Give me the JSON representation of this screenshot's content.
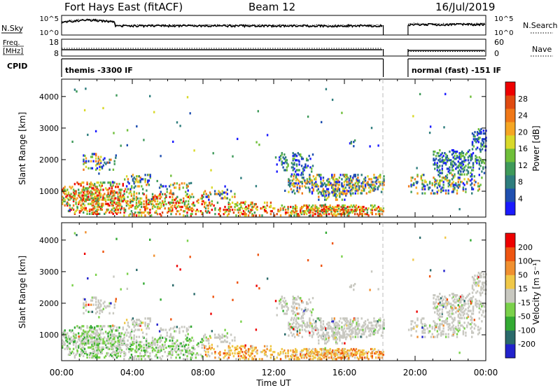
{
  "header": {
    "station": "Fort Hays East (fitACF)",
    "beam": "Beam 12",
    "date": "16/Jul/2019"
  },
  "status_panels": {
    "noise": {
      "left_label": "N.Sky",
      "right_label": "N.Search",
      "left_ticks": [
        "10^5",
        "10^0"
      ],
      "right_ticks": [
        "10^5",
        "10^0"
      ]
    },
    "frequency": {
      "left_label_top": "Freq.",
      "left_label_bottom": "[MHz]",
      "right_label": "Nave",
      "left_ticks": [
        "18",
        "8"
      ],
      "right_ticks": [
        "60",
        "0"
      ]
    },
    "cpid": {
      "label": "CPID",
      "segments": [
        {
          "text": "themis -3300 IF",
          "start_hour": 0,
          "end_hour": 18.2
        },
        {
          "text": "normal (fast) -151 IF",
          "start_hour": 19.6,
          "end_hour": 24
        }
      ]
    }
  },
  "chart_data": [
    {
      "type": "heatmap",
      "name": "power-panel",
      "ylabel": "Slant Range [km]",
      "y_ticks": [
        1000,
        2000,
        3000,
        4000
      ],
      "x_ticks": [
        "00:00",
        "04:00",
        "08:00",
        "12:00",
        "16:00",
        "20:00",
        "00:00"
      ],
      "xlim_hours": [
        0,
        24
      ],
      "ylim_km": [
        180,
        4550
      ],
      "data_gap_hours": [
        18.2,
        19.6
      ],
      "colorbar": {
        "label": "Power [dB]",
        "ticks": [
          "28",
          "24",
          "20",
          "16",
          "12",
          "8",
          "4"
        ],
        "colors": [
          "#1a1aff",
          "#1f4fb0",
          "#2e7d7d",
          "#3f9a5a",
          "#6fbf3a",
          "#d9d92a",
          "#f5a623",
          "#f07818",
          "#e04a10",
          "#ee0000"
        ]
      }
    },
    {
      "type": "heatmap",
      "name": "velocity-panel",
      "ylabel": "Slant Range [km]",
      "y_ticks": [
        1000,
        2000,
        3000,
        4000
      ],
      "x_ticks": [
        "00:00",
        "04:00",
        "08:00",
        "12:00",
        "16:00",
        "20:00",
        "00:00"
      ],
      "xlabel": "Time UT",
      "xlim_hours": [
        0,
        24
      ],
      "ylim_km": [
        180,
        4550
      ],
      "data_gap_hours": [
        18.2,
        19.6
      ],
      "colorbar": {
        "label": "Velocity [m s⁻¹]",
        "ticks": [
          "200",
          "100",
          "50",
          "15",
          "-15",
          "-50",
          "-100",
          "-200"
        ],
        "colors": [
          "#2222cc",
          "#2a6a6a",
          "#33aa33",
          "#7ad14a",
          "#c8c8c0",
          "#f0c848",
          "#f09030",
          "#ee5511",
          "#ee0000"
        ]
      }
    }
  ]
}
